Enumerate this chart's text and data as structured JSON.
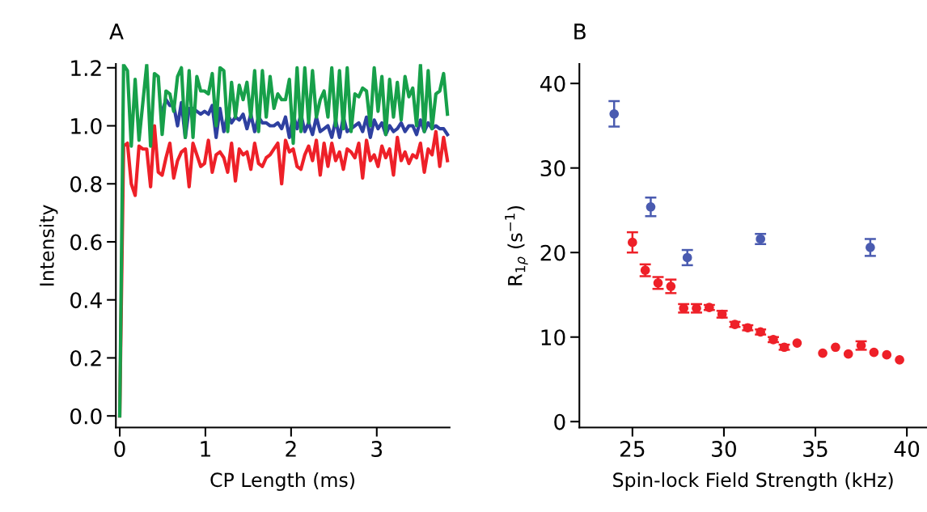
{
  "chart_data": [
    {
      "type": "line",
      "title": "A",
      "xlabel": "CP Length (ms)",
      "ylabel": "Intensity",
      "x": [
        0,
        0.045,
        0.09,
        0.135,
        0.18,
        0.225,
        0.27,
        0.315,
        0.36,
        0.405,
        0.45,
        0.495,
        0.54,
        0.585,
        0.63,
        0.675,
        0.72,
        0.765,
        0.81,
        0.855,
        0.9,
        0.945,
        0.99,
        1.035,
        1.08,
        1.125,
        1.17,
        1.215,
        1.26,
        1.305,
        1.35,
        1.395,
        1.44,
        1.485,
        1.53,
        1.575,
        1.62,
        1.665,
        1.71,
        1.755,
        1.8,
        1.845,
        1.89,
        1.935,
        1.98,
        2.025,
        2.07,
        2.115,
        2.16,
        2.205,
        2.25,
        2.295,
        2.34,
        2.385,
        2.43,
        2.475,
        2.52,
        2.565,
        2.61,
        2.655,
        2.7,
        2.745,
        2.79,
        2.835,
        2.88,
        2.925,
        2.97,
        3.015,
        3.06,
        3.105,
        3.15,
        3.195,
        3.24,
        3.285,
        3.33,
        3.375,
        3.42,
        3.465,
        3.51,
        3.555,
        3.6,
        3.645,
        3.69,
        3.735,
        3.78,
        3.825
      ],
      "series": [
        {
          "color": "#ee2028",
          "values": [
            0.0,
            0.93,
            0.94,
            0.8,
            0.76,
            0.93,
            0.92,
            0.92,
            0.79,
            1.0,
            0.84,
            0.83,
            0.89,
            0.94,
            0.82,
            0.88,
            0.91,
            0.92,
            0.79,
            0.94,
            0.9,
            0.86,
            0.87,
            0.95,
            0.84,
            0.9,
            0.91,
            0.89,
            0.84,
            0.94,
            0.81,
            0.92,
            0.9,
            0.91,
            0.85,
            0.94,
            0.87,
            0.86,
            0.89,
            0.9,
            0.92,
            0.94,
            0.8,
            0.95,
            0.91,
            0.92,
            0.86,
            0.85,
            0.9,
            0.93,
            0.88,
            0.95,
            0.83,
            0.94,
            0.86,
            0.94,
            0.88,
            0.91,
            0.85,
            0.92,
            0.91,
            0.89,
            0.94,
            0.82,
            0.95,
            0.88,
            0.9,
            0.86,
            0.93,
            0.89,
            0.92,
            0.83,
            0.96,
            0.88,
            0.91,
            0.87,
            0.9,
            0.89,
            0.94,
            0.84,
            0.92,
            0.9,
            0.98,
            0.86,
            0.96,
            0.88
          ]
        },
        {
          "color": "#2e40a0",
          "values": [
            null,
            null,
            null,
            null,
            null,
            null,
            null,
            null,
            null,
            null,
            null,
            1.05,
            1.09,
            1.07,
            1.07,
            1.0,
            1.08,
            0.96,
            1.06,
            1.06,
            1.05,
            1.04,
            1.05,
            1.04,
            1.07,
            0.96,
            1.06,
            0.98,
            1.04,
            1.01,
            1.03,
            1.02,
            1.04,
            0.99,
            1.04,
            0.98,
            1.03,
            1.01,
            1.01,
            1.0,
            1.0,
            1.01,
            0.99,
            1.03,
            0.96,
            1.04,
            0.99,
            1.04,
            0.98,
            1.01,
            0.97,
            1.03,
            0.98,
            0.99,
            1.0,
            0.96,
            1.02,
            0.96,
            1.03,
            0.98,
            0.99,
            1.0,
            1.01,
            0.98,
            1.03,
            0.96,
            1.02,
            0.99,
            1.01,
            0.97,
            1.0,
            0.98,
            0.99,
            1.01,
            0.98,
            1.0,
            1.0,
            0.97,
            1.02,
            0.98,
            1.01,
            0.99,
            1.0,
            0.99,
            0.99,
            0.97
          ]
        },
        {
          "color": "#17a04a",
          "values": [
            0.0,
            1.21,
            1.19,
            0.93,
            1.16,
            0.95,
            1.08,
            1.21,
            0.93,
            1.18,
            1.17,
            0.97,
            1.12,
            1.11,
            1.05,
            1.17,
            1.2,
            0.96,
            1.19,
            0.96,
            1.17,
            1.12,
            1.12,
            1.11,
            1.18,
            1.0,
            1.2,
            1.19,
            0.98,
            1.15,
            1.03,
            1.14,
            1.09,
            1.15,
            1.03,
            1.19,
            0.98,
            1.19,
            1.03,
            1.17,
            1.06,
            1.11,
            1.09,
            1.09,
            1.16,
            0.94,
            1.2,
            0.98,
            1.2,
            1.01,
            1.19,
            1.03,
            1.09,
            1.12,
            1.03,
            1.2,
            1.0,
            1.19,
            0.99,
            1.2,
            0.98,
            1.11,
            1.1,
            1.13,
            1.12,
            1.0,
            1.2,
            1.05,
            1.17,
            0.97,
            1.16,
            1.03,
            1.15,
            1.02,
            1.17,
            1.1,
            1.13,
            1.0,
            1.21,
            0.98,
            1.19,
            0.99,
            1.11,
            1.12,
            1.18,
            1.04
          ]
        }
      ],
      "xlim": [
        -0.045,
        3.85
      ],
      "ylim": [
        -0.04,
        1.213
      ],
      "xticks": [
        0,
        1,
        2,
        3
      ],
      "yticks": [
        {
          "value": 0,
          "label": "0.0"
        },
        {
          "value": 0.2,
          "label": "0.2"
        },
        {
          "value": 0.4,
          "label": "0.4"
        },
        {
          "value": 0.6,
          "label": "0.6"
        },
        {
          "value": 0.8,
          "label": "0.8"
        },
        {
          "value": 1.0,
          "label": "1.0"
        },
        {
          "value": 1.2,
          "label": "1.2"
        }
      ],
      "grid": false,
      "legend": false,
      "marker": "none",
      "line_style": "solid"
    },
    {
      "type": "scatter",
      "title": "B",
      "xlabel": "Spin-lock Field Strength (kHz)",
      "ylabel": "R$_{1ρ}$ (s$^{−1}$)",
      "series": [
        {
          "color": "#4a5bb0",
          "x": [
            24,
            26,
            28,
            32,
            38
          ],
          "values": [
            36.4,
            25.4,
            19.4,
            21.6,
            20.6
          ],
          "errors": [
            1.5,
            1.1,
            0.9,
            0.6,
            1.0
          ]
        },
        {
          "color": "#ee2028",
          "x": [
            25.0,
            25.7,
            26.4,
            27.1,
            27.8,
            28.5,
            29.2,
            29.9,
            30.6,
            31.3,
            32.0,
            32.7,
            33.3,
            34.0,
            35.4,
            36.1,
            36.8,
            37.5,
            38.2,
            38.9,
            39.6
          ],
          "values": [
            21.2,
            17.9,
            16.4,
            16.0,
            13.4,
            13.4,
            13.5,
            12.7,
            11.5,
            11.1,
            10.6,
            9.7,
            8.8,
            9.3,
            8.1,
            8.8,
            8.0,
            9.0,
            8.2,
            7.9,
            7.3
          ],
          "errors": [
            1.2,
            0.7,
            0.7,
            0.8,
            0.5,
            0.5,
            0.3,
            0.4,
            0.3,
            0.3,
            0.3,
            0.3,
            0.3,
            null,
            null,
            null,
            null,
            0.5,
            null,
            null,
            null
          ]
        }
      ],
      "xlim": [
        22.1,
        41.1
      ],
      "ylim": [
        -0.7,
        42.3
      ],
      "xticks": [
        25,
        30,
        35,
        40
      ],
      "yticks": [
        0,
        10,
        20,
        30,
        40
      ],
      "grid": false,
      "legend": false,
      "marker": "circle"
    }
  ]
}
